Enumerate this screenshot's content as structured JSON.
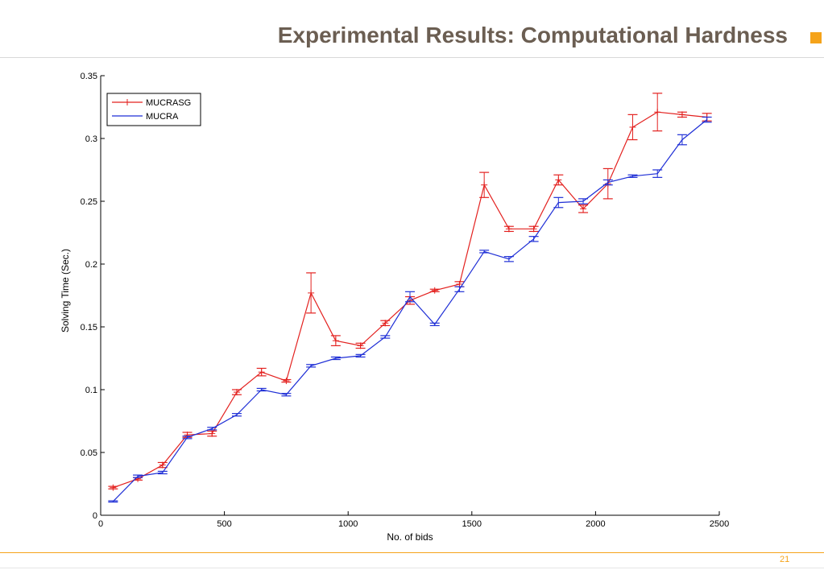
{
  "slide": {
    "title": "Experimental Results: Computational Hardness",
    "page_number": "21",
    "accent_color": "#f5a31a",
    "title_color": "#6b5e52"
  },
  "chart_data": {
    "type": "line",
    "title": "",
    "xlabel": "No. of bids",
    "ylabel": "Solving Time (Sec.)",
    "xlim": [
      0,
      2500
    ],
    "ylim": [
      0,
      0.35
    ],
    "x_ticks": [
      0,
      500,
      1000,
      1500,
      2000,
      2500
    ],
    "x_tick_labels": [
      "0",
      "500",
      "1000",
      "1500",
      "2000",
      "2500"
    ],
    "y_ticks": [
      0,
      0.05,
      0.1,
      0.15,
      0.2,
      0.25,
      0.3,
      0.35
    ],
    "y_tick_labels": [
      "0",
      "0.05",
      "0.1",
      "0.15",
      "0.2",
      "0.25",
      "0.3",
      "0.35"
    ],
    "grid": false,
    "legend_position": "top-left",
    "x": [
      50,
      150,
      250,
      350,
      450,
      550,
      650,
      750,
      850,
      950,
      1050,
      1150,
      1250,
      1350,
      1450,
      1550,
      1650,
      1750,
      1850,
      1950,
      2050,
      2150,
      2250,
      2350,
      2450
    ],
    "series": [
      {
        "name": "MUCRASG",
        "color": "#e3211f",
        "marker": "plus",
        "values": [
          0.022,
          0.029,
          0.04,
          0.064,
          0.065,
          0.098,
          0.114,
          0.107,
          0.177,
          0.139,
          0.135,
          0.153,
          0.171,
          0.179,
          0.184,
          0.263,
          0.228,
          0.228,
          0.267,
          0.244,
          0.264,
          0.309,
          0.321,
          0.319,
          0.317
        ],
        "errors": [
          0.001,
          0.001,
          0.002,
          0.002,
          0.002,
          0.002,
          0.003,
          0.001,
          0.016,
          0.004,
          0.002,
          0.002,
          0.003,
          0.001,
          0.002,
          0.01,
          0.002,
          0.002,
          0.004,
          0.003,
          0.012,
          0.01,
          0.015,
          0.002,
          0.003
        ]
      },
      {
        "name": "MUCRA",
        "color": "#1f2fd6",
        "marker": "none",
        "values": [
          0.011,
          0.031,
          0.034,
          0.062,
          0.069,
          0.08,
          0.1,
          0.096,
          0.119,
          0.125,
          0.127,
          0.142,
          0.174,
          0.152,
          0.18,
          0.21,
          0.204,
          0.22,
          0.249,
          0.25,
          0.265,
          0.27,
          0.272,
          0.299,
          0.315
        ],
        "errors": [
          0.0005,
          0.001,
          0.001,
          0.001,
          0.001,
          0.001,
          0.001,
          0.001,
          0.001,
          0.001,
          0.001,
          0.001,
          0.004,
          0.001,
          0.002,
          0.001,
          0.002,
          0.002,
          0.004,
          0.002,
          0.002,
          0.001,
          0.003,
          0.004,
          0.002
        ]
      }
    ]
  }
}
